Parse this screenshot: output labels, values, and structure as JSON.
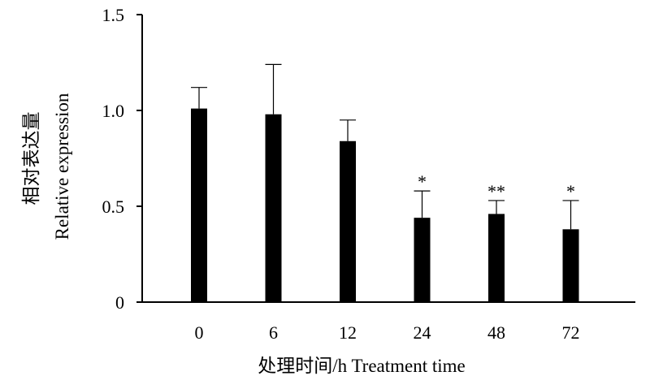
{
  "chart_data": {
    "type": "bar",
    "title": "",
    "xlabel": "处理时间/h Treatment time",
    "ylabel_cn": "相对表达量",
    "ylabel": "Relative expression",
    "ylim": [
      0,
      1.5
    ],
    "yticks": [
      "0",
      "0.5",
      "1.0",
      "1.5"
    ],
    "categories": [
      "0",
      "6",
      "12",
      "24",
      "48",
      "72"
    ],
    "values": [
      1.01,
      0.98,
      0.84,
      0.44,
      0.46,
      0.38
    ],
    "errors": [
      0.11,
      0.26,
      0.11,
      0.14,
      0.07,
      0.15
    ],
    "significance": [
      "",
      "",
      "",
      "*",
      "**",
      "*"
    ],
    "colors": {
      "bar": "#000000",
      "axis": "#000000",
      "background": "#ffffff"
    },
    "grid": false,
    "legend": "none"
  }
}
